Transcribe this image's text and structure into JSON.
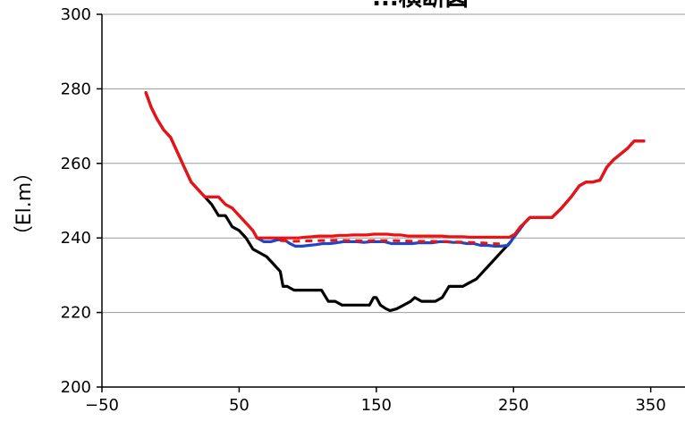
{
  "chart_data": {
    "type": "line",
    "title": "",
    "title_partial": "...横断図",
    "xlabel": "",
    "ylabel": "（El.m）",
    "xlim": [
      -50,
      375
    ],
    "ylim": [
      200,
      300
    ],
    "x_ticks": [
      -50,
      50,
      150,
      250,
      350
    ],
    "y_ticks": [
      200,
      220,
      240,
      260,
      280,
      300
    ],
    "grid": "horizontal",
    "colors": {
      "black_series": "#000000",
      "blue_series": "#2046c8",
      "red_series": "#ee1111",
      "grid": "#9a9a9a",
      "axis": "#000000"
    },
    "series": [
      {
        "color": "#000000",
        "points": [
          [
            -18,
            279
          ],
          [
            -14,
            275
          ],
          [
            -10,
            272
          ],
          [
            -5,
            269
          ],
          [
            0,
            267
          ],
          [
            5,
            263
          ],
          [
            10,
            259
          ],
          [
            15,
            255
          ],
          [
            20,
            253
          ],
          [
            25,
            251
          ],
          [
            30,
            249
          ],
          [
            35,
            246
          ],
          [
            40,
            246
          ],
          [
            45,
            243
          ],
          [
            50,
            242
          ],
          [
            55,
            240
          ],
          [
            60,
            237
          ],
          [
            65,
            236
          ],
          [
            70,
            235
          ],
          [
            75,
            233
          ],
          [
            80,
            231
          ],
          [
            82,
            227
          ],
          [
            85,
            227
          ],
          [
            90,
            226
          ],
          [
            95,
            226
          ],
          [
            100,
            226
          ],
          [
            105,
            226
          ],
          [
            110,
            226
          ],
          [
            115,
            223
          ],
          [
            120,
            223
          ],
          [
            125,
            222
          ],
          [
            130,
            222
          ],
          [
            135,
            222
          ],
          [
            140,
            222
          ],
          [
            145,
            222
          ],
          [
            148,
            224
          ],
          [
            150,
            224
          ],
          [
            153,
            222
          ],
          [
            157,
            221
          ],
          [
            160,
            220.5
          ],
          [
            165,
            221
          ],
          [
            170,
            222
          ],
          [
            175,
            223
          ],
          [
            178,
            224
          ],
          [
            183,
            223
          ],
          [
            188,
            223
          ],
          [
            193,
            223
          ],
          [
            198,
            224
          ],
          [
            203,
            227
          ],
          [
            208,
            227
          ],
          [
            213,
            227
          ],
          [
            218,
            228
          ],
          [
            223,
            229
          ],
          [
            228,
            231
          ],
          [
            233,
            233
          ],
          [
            238,
            235
          ],
          [
            243,
            237
          ],
          [
            248,
            239
          ],
          [
            253,
            242
          ],
          [
            258,
            244
          ],
          [
            262,
            245.5
          ],
          [
            270,
            245.5
          ],
          [
            278,
            245.5
          ],
          [
            285,
            248
          ],
          [
            292,
            251
          ],
          [
            298,
            254
          ],
          [
            303,
            255
          ],
          [
            308,
            255
          ],
          [
            313,
            255.5
          ],
          [
            318,
            259
          ],
          [
            323,
            261
          ],
          [
            328,
            262.5
          ],
          [
            333,
            264
          ],
          [
            338,
            266
          ],
          [
            345,
            266
          ]
        ]
      },
      {
        "color": "#2046c8",
        "points": [
          [
            -18,
            279
          ],
          [
            -14,
            275
          ],
          [
            -10,
            272
          ],
          [
            -5,
            269
          ],
          [
            0,
            267
          ],
          [
            5,
            263
          ],
          [
            10,
            259
          ],
          [
            15,
            255
          ],
          [
            20,
            253
          ],
          [
            25,
            251
          ],
          [
            30,
            251
          ],
          [
            35,
            251
          ],
          [
            40,
            249
          ],
          [
            45,
            248
          ],
          [
            50,
            246
          ],
          [
            55,
            244
          ],
          [
            60,
            242
          ],
          [
            63,
            240
          ],
          [
            68,
            239
          ],
          [
            73,
            239
          ],
          [
            78,
            239.5
          ],
          [
            83,
            239.5
          ],
          [
            87,
            238.5
          ],
          [
            91,
            237.8
          ],
          [
            96,
            237.8
          ],
          [
            101,
            238
          ],
          [
            106,
            238.2
          ],
          [
            111,
            238.5
          ],
          [
            116,
            238.5
          ],
          [
            121,
            238.7
          ],
          [
            126,
            239
          ],
          [
            131,
            239
          ],
          [
            136,
            239
          ],
          [
            141,
            238.8
          ],
          [
            146,
            239
          ],
          [
            151,
            239
          ],
          [
            156,
            239
          ],
          [
            161,
            238.5
          ],
          [
            166,
            238.5
          ],
          [
            171,
            238.5
          ],
          [
            176,
            238.5
          ],
          [
            181,
            238.7
          ],
          [
            186,
            238.7
          ],
          [
            191,
            238.7
          ],
          [
            196,
            239
          ],
          [
            201,
            239
          ],
          [
            206,
            238.8
          ],
          [
            211,
            238.8
          ],
          [
            216,
            238.5
          ],
          [
            221,
            238.5
          ],
          [
            226,
            238
          ],
          [
            231,
            238
          ],
          [
            236,
            237.8
          ],
          [
            241,
            237.8
          ],
          [
            246,
            238
          ],
          [
            250,
            240
          ],
          [
            254,
            242
          ],
          [
            258,
            244
          ],
          [
            262,
            245.5
          ],
          [
            270,
            245.5
          ],
          [
            278,
            245.5
          ],
          [
            285,
            248
          ],
          [
            292,
            251
          ],
          [
            298,
            254
          ],
          [
            303,
            255
          ],
          [
            308,
            255
          ],
          [
            313,
            255.5
          ],
          [
            318,
            259
          ],
          [
            323,
            261
          ],
          [
            328,
            262.5
          ],
          [
            333,
            264
          ],
          [
            338,
            266
          ],
          [
            345,
            266
          ]
        ]
      },
      {
        "color": "#ee1111",
        "points": [
          [
            -18,
            279
          ],
          [
            -14,
            275
          ],
          [
            -10,
            272
          ],
          [
            -5,
            269
          ],
          [
            0,
            267
          ],
          [
            5,
            263
          ],
          [
            10,
            259
          ],
          [
            15,
            255
          ],
          [
            20,
            253
          ],
          [
            25,
            251
          ],
          [
            30,
            251
          ],
          [
            35,
            251
          ],
          [
            40,
            249
          ],
          [
            45,
            248
          ],
          [
            50,
            246
          ],
          [
            55,
            244
          ],
          [
            60,
            242
          ],
          [
            63,
            240
          ],
          [
            68,
            240
          ],
          [
            73,
            240
          ],
          [
            78,
            240
          ],
          [
            83,
            240
          ],
          [
            88,
            240
          ],
          [
            93,
            240
          ],
          [
            98,
            240.2
          ],
          [
            103,
            240.3
          ],
          [
            108,
            240.5
          ],
          [
            113,
            240.5
          ],
          [
            118,
            240.5
          ],
          [
            123,
            240.7
          ],
          [
            128,
            240.7
          ],
          [
            133,
            240.8
          ],
          [
            138,
            240.8
          ],
          [
            143,
            240.8
          ],
          [
            148,
            241
          ],
          [
            153,
            241
          ],
          [
            158,
            241
          ],
          [
            163,
            240.8
          ],
          [
            168,
            240.8
          ],
          [
            173,
            240.5
          ],
          [
            178,
            240.5
          ],
          [
            183,
            240.5
          ],
          [
            188,
            240.5
          ],
          [
            193,
            240.5
          ],
          [
            198,
            240.5
          ],
          [
            203,
            240.3
          ],
          [
            208,
            240.3
          ],
          [
            213,
            240.3
          ],
          [
            218,
            240.2
          ],
          [
            223,
            240.2
          ],
          [
            228,
            240.2
          ],
          [
            233,
            240.2
          ],
          [
            238,
            240.2
          ],
          [
            243,
            240.2
          ],
          [
            247,
            240.2
          ],
          [
            251,
            241
          ],
          [
            255,
            243
          ],
          [
            258,
            244
          ],
          [
            262,
            245.5
          ],
          [
            270,
            245.5
          ],
          [
            278,
            245.5
          ],
          [
            285,
            248
          ],
          [
            292,
            251
          ],
          [
            298,
            254
          ],
          [
            303,
            255
          ],
          [
            308,
            255
          ],
          [
            313,
            255.5
          ],
          [
            318,
            259
          ],
          [
            323,
            261
          ],
          [
            328,
            262.5
          ],
          [
            333,
            264
          ],
          [
            338,
            266
          ],
          [
            345,
            266
          ]
        ]
      }
    ],
    "dashed_overlay": {
      "color": "#ee1111",
      "points": [
        [
          80,
          239.3
        ],
        [
          90,
          239.1
        ],
        [
          100,
          239.2
        ],
        [
          110,
          239.3
        ],
        [
          120,
          239.4
        ],
        [
          130,
          239.3
        ],
        [
          140,
          239.2
        ],
        [
          150,
          239.3
        ],
        [
          160,
          239.3
        ],
        [
          170,
          239.2
        ],
        [
          180,
          239.1
        ],
        [
          190,
          239.1
        ],
        [
          200,
          239.0
        ],
        [
          210,
          238.9
        ],
        [
          220,
          238.8
        ],
        [
          230,
          238.6
        ],
        [
          240,
          238.4
        ]
      ]
    }
  }
}
